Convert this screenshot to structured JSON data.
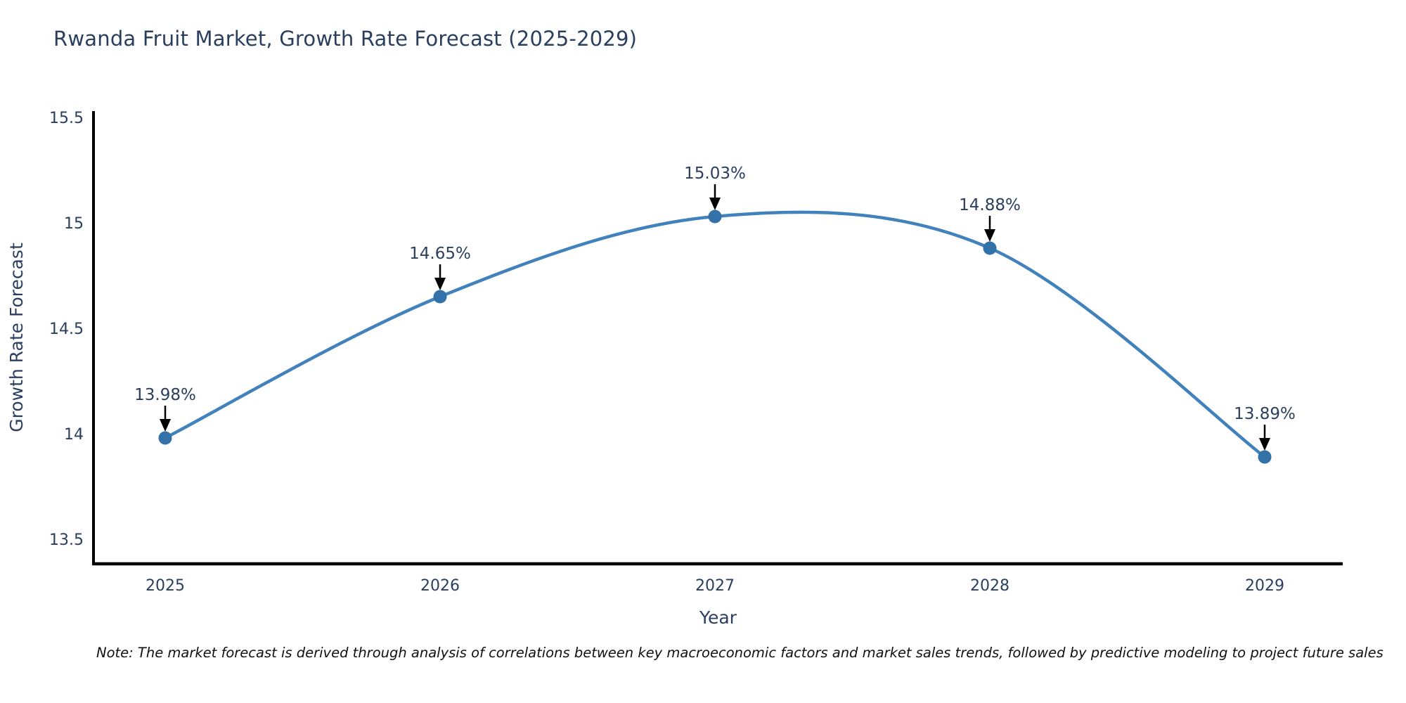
{
  "title": "Rwanda Fruit Market, Growth Rate Forecast (2025-2029)",
  "note": "Note: The market forecast is derived through analysis of correlations between key macroeconomic factors and market sales trends, followed by predictive modeling to project future sales",
  "chart_data": {
    "type": "line",
    "line_shape": "spline",
    "x": [
      2025,
      2026,
      2027,
      2028,
      2029
    ],
    "categories": [
      "2025",
      "2026",
      "2027",
      "2028",
      "2029"
    ],
    "series": [
      {
        "name": "Growth Rate Forecast",
        "values": [
          13.98,
          14.65,
          15.03,
          14.88,
          13.89
        ],
        "point_labels": [
          "13.98%",
          "14.65%",
          "15.03%",
          "14.88%",
          "13.89%"
        ]
      }
    ],
    "xlabel": "Year",
    "ylabel": "Growth Rate Forecast",
    "ylim": [
      13.38,
      15.52
    ],
    "yticks": [
      {
        "value": 13.5,
        "label": "13.5"
      },
      {
        "value": 14.0,
        "label": "14"
      },
      {
        "value": 14.5,
        "label": "14.5"
      },
      {
        "value": 15.0,
        "label": "15"
      },
      {
        "value": 15.5,
        "label": "15.5"
      }
    ],
    "grid": false,
    "legend": "none",
    "markers": true,
    "annotations_have_arrows": true,
    "colors": {
      "line": "#4181bc",
      "marker": "#3272a8",
      "axis": "#000000",
      "tick_text": "#2a3f5f",
      "axis_title_text": "#2a3f5f",
      "annotation_text": "#2a3f5f",
      "annotation_arrow": "#000000",
      "title_text": "#2a3f5f",
      "background": "#ffffff"
    }
  }
}
